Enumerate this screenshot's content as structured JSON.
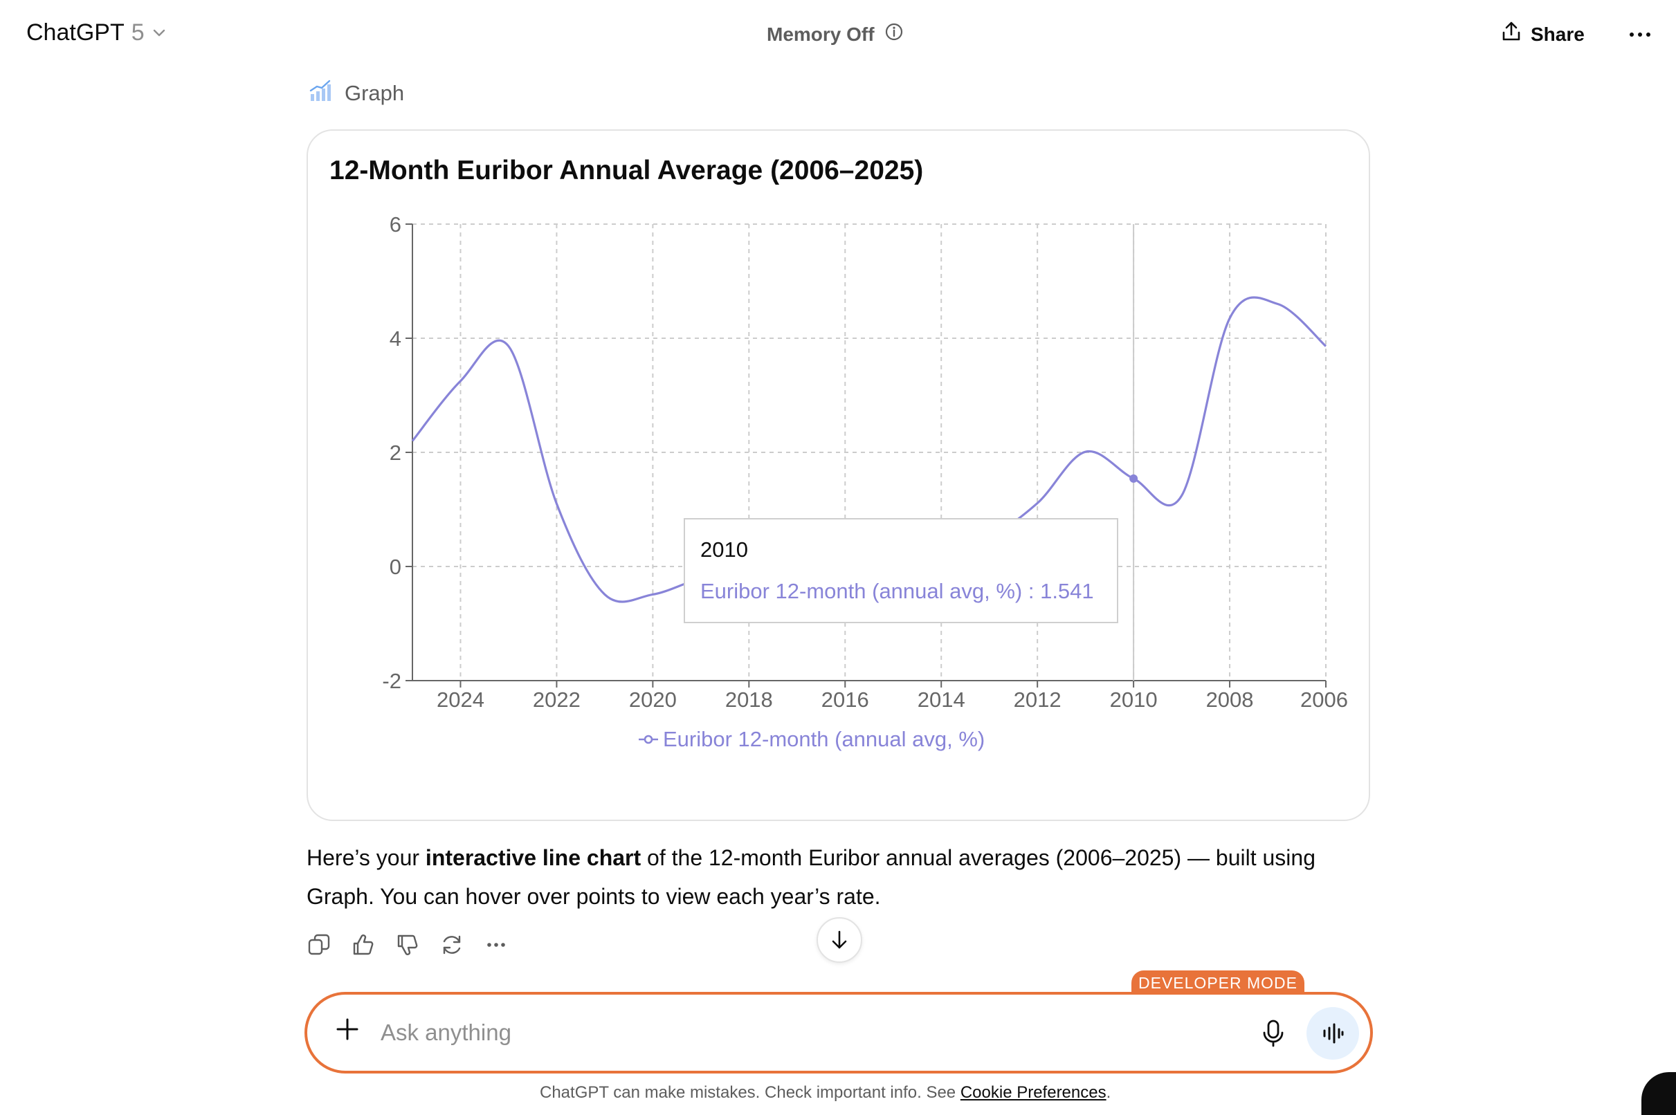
{
  "header": {
    "app_name": "ChatGPT",
    "model_version": "5",
    "memory_status": "Memory Off",
    "share_label": "Share"
  },
  "tool": {
    "label": "Graph"
  },
  "chart_card": {
    "title": "12-Month Euribor Annual Average (2006–2025)"
  },
  "chart_data": {
    "type": "line",
    "title": "12-Month Euribor Annual Average (2006–2025)",
    "xlabel": "",
    "ylabel": "",
    "x_reversed": true,
    "xlim": [
      2025,
      2006
    ],
    "ylim": [
      -2,
      6
    ],
    "y_ticks": [
      "-2",
      "0",
      "2",
      "4",
      "6"
    ],
    "x_ticks": [
      "2024",
      "2022",
      "2020",
      "2018",
      "2016",
      "2014",
      "2012",
      "2010",
      "2008",
      "2006"
    ],
    "grid": true,
    "legend_position": "bottom",
    "series": [
      {
        "name": "Euribor 12-month (annual avg, %)",
        "color": "#8884d8",
        "x": [
          2025,
          2024,
          2023,
          2022,
          2021,
          2020,
          2019,
          2018,
          2017,
          2016,
          2015,
          2014,
          2013,
          2012,
          2011,
          2010,
          2009,
          2008,
          2007,
          2006
        ],
        "y": [
          2.2,
          3.25,
          3.86,
          1.1,
          -0.49,
          -0.49,
          -0.22,
          -0.17,
          -0.15,
          -0.03,
          0.17,
          0.48,
          0.54,
          1.11,
          2.01,
          1.541,
          1.24,
          4.35,
          4.6,
          3.86
        ]
      }
    ],
    "tooltip": {
      "year": "2010",
      "text": "Euribor 12-month (annual avg, %) : 1.541"
    }
  },
  "response": {
    "part1": "Here’s your ",
    "bold": "interactive line chart",
    "part2": " of the 12-month Euribor annual averages (2006–2025) — built using Graph. You can hover over points to view each year’s rate."
  },
  "composer": {
    "badge": "DEVELOPER MODE",
    "placeholder": "Ask anything"
  },
  "footer": {
    "text": "ChatGPT can make mistakes. Check important info. See ",
    "link": "Cookie Preferences",
    "end": "."
  }
}
